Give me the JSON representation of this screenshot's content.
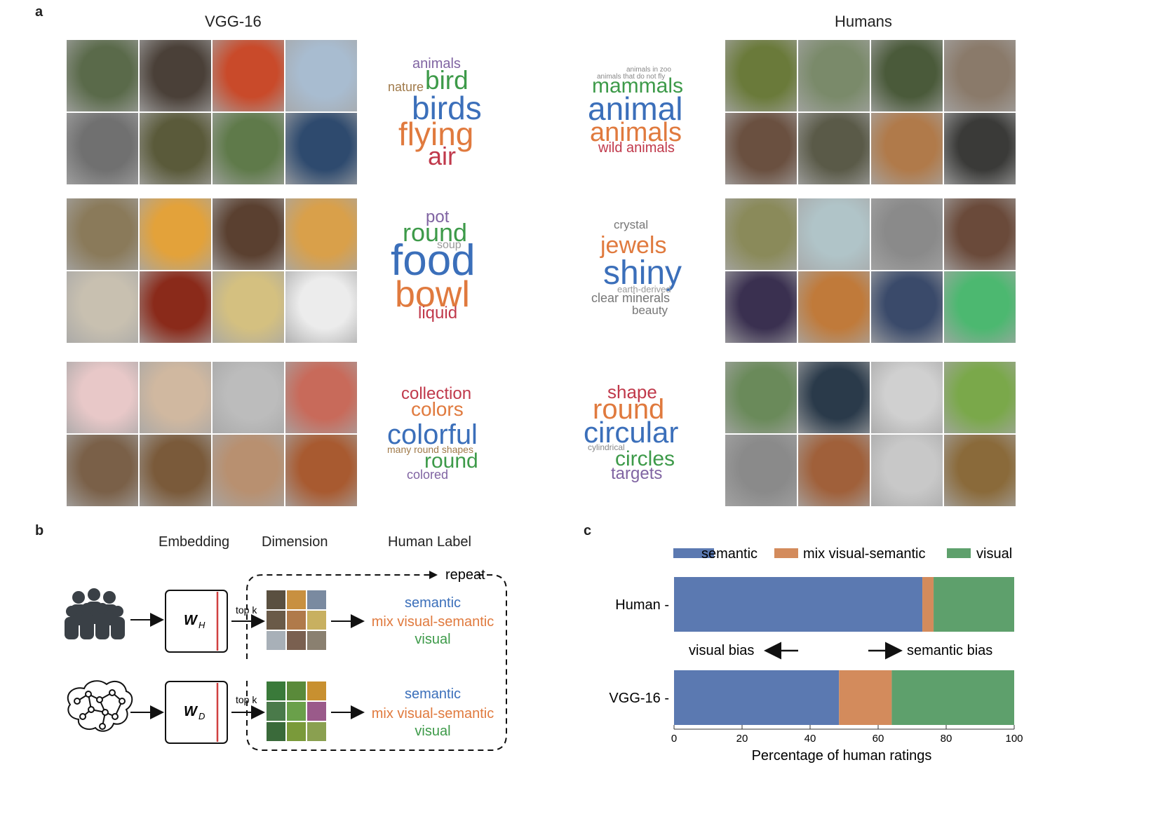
{
  "panel_a": {
    "letter": "a",
    "left_title": "VGG-16",
    "right_title": "Humans",
    "left_clouds": [
      [
        {
          "text": "animals",
          "color": "#8064a2"
        },
        {
          "text": "nature",
          "color": "#a07a4a"
        },
        {
          "text": "bird",
          "color": "#3d9a49"
        },
        {
          "text": "birds",
          "color": "#3b6fba"
        },
        {
          "text": "flying",
          "color": "#e07a3e"
        },
        {
          "text": "air",
          "color": "#c0394b"
        }
      ],
      [
        {
          "text": "pot",
          "color": "#8064a2"
        },
        {
          "text": "round",
          "color": "#3d9a49"
        },
        {
          "text": "soup",
          "color": "#999999"
        },
        {
          "text": "food",
          "color": "#3b6fba"
        },
        {
          "text": "bowl",
          "color": "#e07a3e"
        },
        {
          "text": "liquid",
          "color": "#c0394b"
        }
      ],
      [
        {
          "text": "collection",
          "color": "#c0394b"
        },
        {
          "text": "colors",
          "color": "#e07a3e"
        },
        {
          "text": "colorful",
          "color": "#3b6fba"
        },
        {
          "text": "many round shapes",
          "color": "#a07a4a"
        },
        {
          "text": "round",
          "color": "#3d9a49"
        },
        {
          "text": "colored",
          "color": "#8064a2"
        }
      ]
    ],
    "right_clouds": [
      [
        {
          "text": "animals in zoo",
          "color": "#888888"
        },
        {
          "text": "animals that do not fly",
          "color": "#888888"
        },
        {
          "text": "mammals",
          "color": "#3d9a49"
        },
        {
          "text": "animal",
          "color": "#3b6fba"
        },
        {
          "text": "animals",
          "color": "#e07a3e"
        },
        {
          "text": "wild animals",
          "color": "#c0394b"
        }
      ],
      [
        {
          "text": "crystal",
          "color": "#777777"
        },
        {
          "text": "jewels",
          "color": "#e07a3e"
        },
        {
          "text": "shiny",
          "color": "#3b6fba"
        },
        {
          "text": "earth-derived",
          "color": "#999999"
        },
        {
          "text": "clear minerals",
          "color": "#777777"
        },
        {
          "text": "beauty",
          "color": "#777777"
        }
      ],
      [
        {
          "text": "shape",
          "color": "#c0394b"
        },
        {
          "text": "round",
          "color": "#e07a3e"
        },
        {
          "text": "circular",
          "color": "#3b6fba"
        },
        {
          "text": "cylindrical",
          "color": "#888888"
        },
        {
          "text": "circles",
          "color": "#3d9a49"
        },
        {
          "text": "targets",
          "color": "#8064a2"
        }
      ]
    ],
    "left_photo_colors": [
      [
        "#5a6a4a",
        "#4a4038",
        "#c94a2a",
        "#a8bcd0",
        "#707070",
        "#5a5a3a",
        "#5f7a4a",
        "#2e4a6e"
      ],
      [
        "#8a7a5a",
        "#e3a23a",
        "#5a4030",
        "#d9a04a",
        "#c8c0b0",
        "#8a2a1a",
        "#d4c080",
        "#ececec"
      ],
      [
        "#e8c8c8",
        "#d0b8a0",
        "#bcbcbc",
        "#c86a5a",
        "#7a6048",
        "#7a5a3a",
        "#b89070",
        "#a85a30"
      ]
    ],
    "right_photo_colors": [
      [
        "#6a7a3a",
        "#7a8a6a",
        "#4a5a3a",
        "#8a7a6a",
        "#6a5040",
        "#5a5a48",
        "#b07a4a",
        "#3a3a38"
      ],
      [
        "#8a8a5a",
        "#b0c4c8",
        "#8a8a8a",
        "#6a4a3a",
        "#3a3050",
        "#c07a3a",
        "#3a4a6a",
        "#4cb870"
      ],
      [
        "#6a8a5a",
        "#2a3a4a",
        "#d0d0d0",
        "#7aa84a",
        "#8a8a8a",
        "#a0603a",
        "#c8c8c8",
        "#8a6a3a"
      ]
    ]
  },
  "panel_b": {
    "letter": "b",
    "headers": {
      "embedding": "Embedding",
      "dimension": "Dimension",
      "human_label": "Human Label"
    },
    "repeat_label": "repeat",
    "top_k_label": "top k",
    "w_h_main": "W",
    "w_h_sub": "H",
    "w_d_main": "W",
    "w_d_sub": "D",
    "labels": {
      "semantic": "semantic",
      "mix": "mix visual-semantic",
      "visual": "visual"
    },
    "colors": {
      "semantic": "#3b6fba",
      "mix": "#e07a3e",
      "visual": "#3d9a49",
      "accent_line": "#d04040"
    },
    "thumb_colors_top": [
      "#5a5040",
      "#c89040",
      "#7a8aa0",
      "#6a5a48",
      "#b07a4a",
      "#c8b060",
      "#a8b0b8",
      "#7a6050",
      "#8a8070"
    ],
    "thumb_colors_bottom": [
      "#3a7a3a",
      "#5a8a3a",
      "#c89030",
      "#4a7a4a",
      "#6aa04a",
      "#9a5a8a",
      "#3a6a3a",
      "#7a9a3a",
      "#8aa050"
    ]
  },
  "panel_c": {
    "letter": "c",
    "legend_position": "top",
    "bias_left": "visual bias",
    "bias_right": "semantic bias",
    "chart_data": {
      "type": "bar",
      "orientation": "horizontal",
      "stacked": true,
      "categories": [
        "Human",
        "VGG-16"
      ],
      "series": [
        {
          "name": "semantic",
          "color": "#5b79b1",
          "values": [
            73,
            48.5
          ]
        },
        {
          "name": "mix visual-semantic",
          "color": "#d38b5c",
          "values": [
            3.3,
            15.5
          ]
        },
        {
          "name": "visual",
          "color": "#5ea06c",
          "values": [
            23.7,
            36
          ]
        }
      ],
      "xlabel": "Percentage of human ratings",
      "xlim": [
        0,
        100
      ],
      "xticks": [
        "0",
        "20",
        "40",
        "60",
        "80",
        "100"
      ],
      "grid": false
    }
  }
}
